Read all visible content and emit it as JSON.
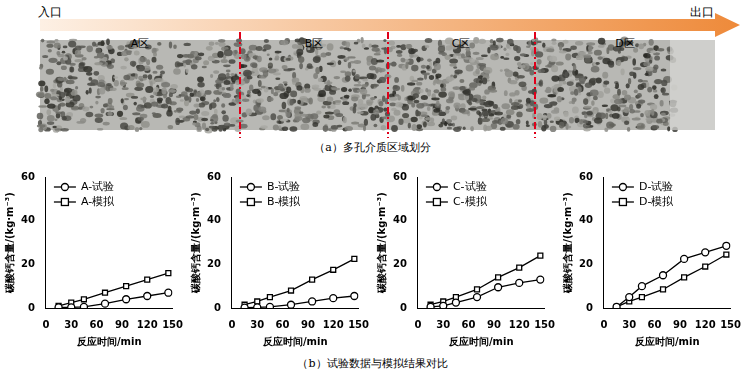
{
  "panel_a": {
    "inlet": "入口",
    "outlet": "出口",
    "zones": [
      "A区",
      "B区",
      "C区",
      "D区"
    ],
    "caption": "（a）多孔介质区域划分"
  },
  "panel_b_caption": "（b）试验数据与模拟结果对比",
  "chart_data": [
    {
      "type": "line",
      "x_label": "反应时间/min",
      "y_label": "碳酸钙含量/(kg·m⁻³)",
      "x": [
        15,
        30,
        45,
        70,
        95,
        120,
        145
      ],
      "xlim": [
        0,
        150
      ],
      "xticks": [
        0,
        30,
        60,
        90,
        120,
        150
      ],
      "ylim": [
        0,
        60
      ],
      "yticks": [
        0,
        20,
        40,
        60
      ],
      "grid": false,
      "legend": "upper left",
      "series": [
        {
          "name": "A-试验",
          "color": "#000000",
          "marker": "circle",
          "values": [
            0.3,
            0.3,
            0.5,
            2,
            4,
            5.5,
            7
          ]
        },
        {
          "name": "A-模拟",
          "color": "#000000",
          "marker": "square",
          "values": [
            1,
            2.5,
            4,
            7,
            10,
            13,
            16
          ]
        }
      ]
    },
    {
      "type": "line",
      "x_label": "反应时间/min",
      "y_label": "碳酸钙含量/(kg·m⁻³)",
      "x": [
        15,
        30,
        45,
        70,
        95,
        120,
        145
      ],
      "xlim": [
        0,
        150
      ],
      "xticks": [
        0,
        30,
        60,
        90,
        120,
        150
      ],
      "ylim": [
        0,
        60
      ],
      "yticks": [
        0,
        20,
        40,
        60
      ],
      "grid": false,
      "legend": "upper left",
      "series": [
        {
          "name": "B-试验",
          "color": "#000000",
          "marker": "circle",
          "values": [
            0.2,
            0.3,
            0.5,
            1.5,
            3,
            4.5,
            5.5
          ]
        },
        {
          "name": "B-模拟",
          "color": "#000000",
          "marker": "square",
          "values": [
            1.5,
            3,
            5,
            8,
            13,
            17.5,
            22.5
          ]
        }
      ]
    },
    {
      "type": "line",
      "x_label": "反应时间/min",
      "y_label": "碳酸钙含量/(kg·m⁻³)",
      "x": [
        15,
        30,
        45,
        70,
        95,
        120,
        145
      ],
      "xlim": [
        0,
        150
      ],
      "xticks": [
        0,
        30,
        60,
        90,
        120,
        150
      ],
      "ylim": [
        0,
        60
      ],
      "yticks": [
        0,
        20,
        40,
        60
      ],
      "grid": false,
      "legend": "upper left",
      "series": [
        {
          "name": "C-试验",
          "color": "#000000",
          "marker": "circle",
          "values": [
            0.5,
            1,
            2.5,
            5,
            9.5,
            11.5,
            13
          ]
        },
        {
          "name": "C-模拟",
          "color": "#000000",
          "marker": "square",
          "values": [
            1.5,
            3,
            5,
            8.5,
            14,
            18.5,
            24
          ]
        }
      ]
    },
    {
      "type": "line",
      "x_label": "反应时间/min",
      "y_label": "碳酸钙含量/(kg·m⁻³)",
      "x": [
        15,
        30,
        45,
        70,
        95,
        120,
        145
      ],
      "xlim": [
        0,
        150
      ],
      "xticks": [
        0,
        30,
        60,
        90,
        120,
        150
      ],
      "ylim": [
        0,
        60
      ],
      "yticks": [
        0,
        20,
        40,
        60
      ],
      "grid": false,
      "legend": "upper left",
      "series": [
        {
          "name": "D-试验",
          "color": "#000000",
          "marker": "circle",
          "values": [
            0.5,
            5,
            10,
            15,
            22.5,
            25.5,
            28.5
          ]
        },
        {
          "name": "D-模拟",
          "color": "#000000",
          "marker": "square",
          "values": [
            0.5,
            3,
            5,
            8.5,
            14,
            19,
            24.5
          ]
        }
      ]
    }
  ]
}
